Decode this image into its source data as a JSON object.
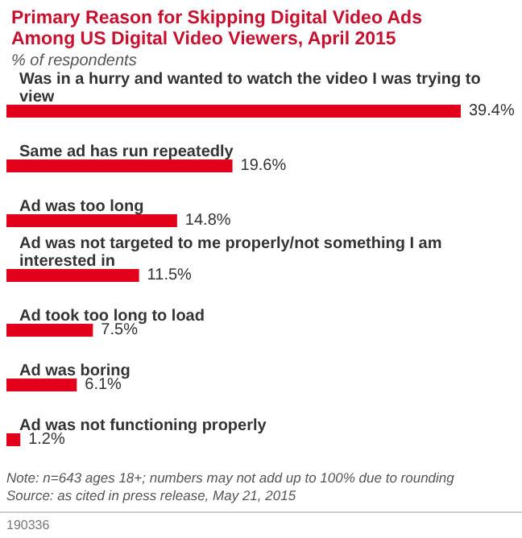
{
  "chart_data": {
    "type": "bar",
    "orientation": "horizontal",
    "title": "Primary Reason for Skipping Digital Video Ads Among US Digital Video Viewers, April 2015",
    "subtitle": "% of respondents",
    "categories": [
      "Was in a hurry and wanted to watch the video I was trying to view",
      "Same ad has run repeatedly",
      "Ad was too long",
      "Ad was not targeted to me properly/not something I am interested in",
      "Ad took too long to load",
      "Ad was boring",
      "Ad was not functioning properly"
    ],
    "values": [
      39.4,
      19.6,
      14.8,
      11.5,
      7.5,
      6.1,
      1.2
    ],
    "value_labels": [
      "39.4%",
      "19.6%",
      "14.8%",
      "11.5%",
      "7.5%",
      "6.1%",
      "1.2%"
    ],
    "color": "#e3001b",
    "annotations": [
      "Note: n=643 ages 18+; numbers may not add up to 100% due to rounding",
      "Source: as cited in press release, May 21, 2015",
      "190336"
    ]
  }
}
